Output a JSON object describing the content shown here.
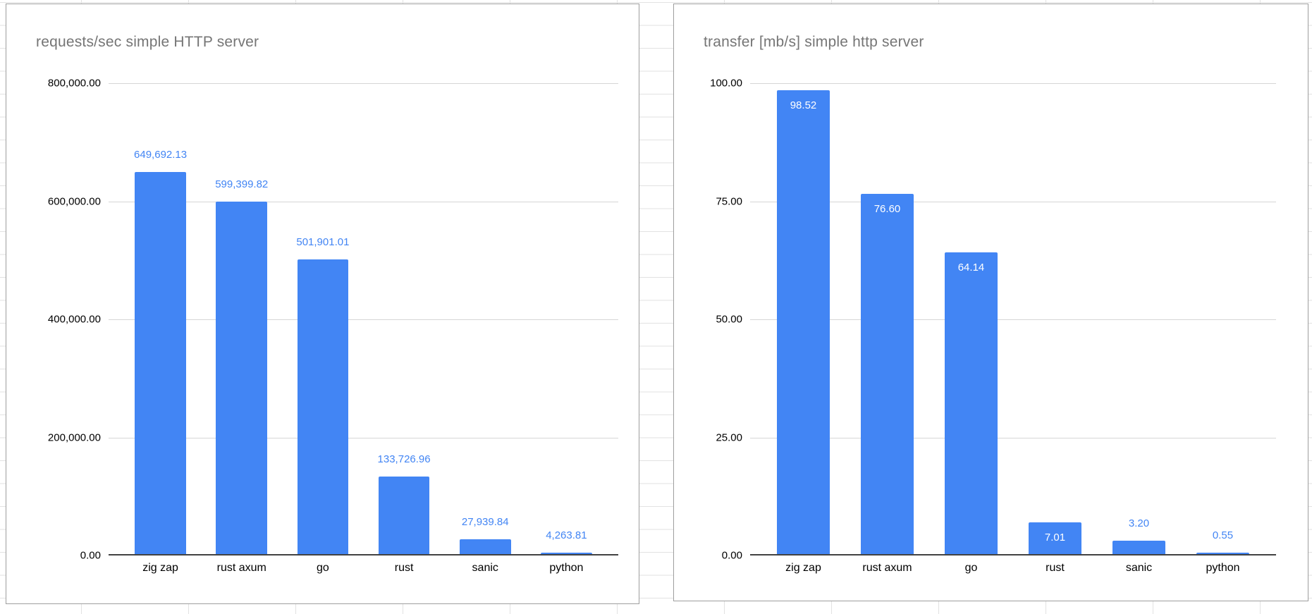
{
  "app": {
    "surface": "spreadsheet-with-embedded-charts",
    "sheet_background": "#ffffff"
  },
  "colors": {
    "bar_fill": "#4285f4",
    "value_label_blue": "#4285f4",
    "value_label_white": "#ffffff",
    "chart_title": "#757575",
    "axis_text": "#000000",
    "gridline": "#d6d6d6",
    "axis_baseline": "#424242",
    "chart_border": "#9e9e9e",
    "sheet_gridline": "#e2e2e2"
  },
  "chart_data": [
    {
      "type": "bar",
      "title": "requests/sec simple HTTP server",
      "categories": [
        "zig zap",
        "rust axum",
        "go",
        "rust",
        "sanic",
        "python"
      ],
      "values": [
        649692.13,
        599399.82,
        501901.01,
        133726.96,
        27939.84,
        4263.81
      ],
      "value_labels": [
        "649,692.13",
        "599,399.82",
        "501,901.01",
        "133,726.96",
        "27,939.84",
        "4,263.81"
      ],
      "label_placement": [
        "above",
        "above",
        "above",
        "above",
        "above",
        "above"
      ],
      "ylim": [
        0,
        800000
      ],
      "ytick_labels": [
        "800,000.00",
        "600,000.00",
        "400,000.00",
        "200,000.00",
        "0.00"
      ],
      "xlabel": "",
      "ylabel": "",
      "grid": true,
      "legend": "none"
    },
    {
      "type": "bar",
      "title": "transfer [mb/s] simple http server",
      "categories": [
        "zig zap",
        "rust axum",
        "go",
        "rust",
        "sanic",
        "python"
      ],
      "values": [
        98.52,
        76.6,
        64.14,
        7.01,
        3.2,
        0.55
      ],
      "value_labels": [
        "98.52",
        "76.60",
        "64.14",
        "7.01",
        "3.20",
        "0.55"
      ],
      "label_placement": [
        "inside",
        "inside",
        "inside",
        "inside",
        "above",
        "above"
      ],
      "ylim": [
        0,
        100
      ],
      "ytick_labels": [
        "100.00",
        "75.00",
        "50.00",
        "25.00",
        "0.00"
      ],
      "xlabel": "",
      "ylabel": "",
      "grid": true,
      "legend": "none"
    }
  ]
}
